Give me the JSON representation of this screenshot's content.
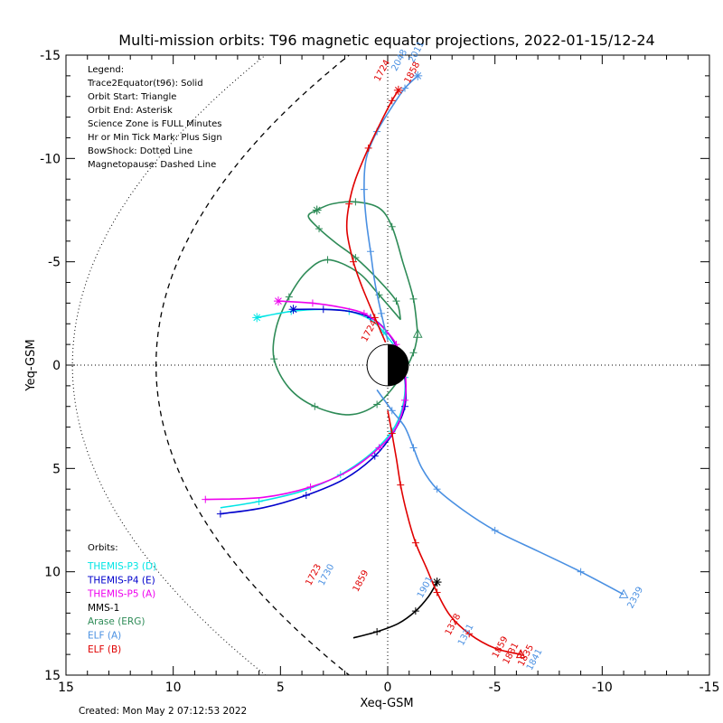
{
  "chart_data": {
    "type": "line",
    "title": "Multi-mission orbits: T96 magnetic equator projections, 2022-01-15/12-24",
    "xlabel": "Xeq-GSM",
    "ylabel": "Yeq-GSM",
    "xlim": [
      15,
      -15
    ],
    "ylim": [
      15,
      -15
    ],
    "xticks": [
      "15",
      "10",
      "5",
      "0",
      "-5",
      "-10",
      "-15"
    ],
    "yticks": [
      "-15",
      "-10",
      "-5",
      "0",
      "5",
      "10",
      "15"
    ],
    "grid": "dotted zero lines",
    "legend_lines": [
      "Legend:",
      "Trace2Equator(t96): Solid",
      "Orbit Start: Triangle",
      "Orbit End: Asterisk",
      "Science Zone is FULL Minutes",
      "Hr or Min Tick Mark: Plus Sign",
      "BowShock: Dotted Line",
      "Magnetopause: Dashed Line"
    ],
    "orbits_header": "Orbits:",
    "orbit_legend": [
      {
        "name": "THEMIS-P3 (D)",
        "color": "#00e5e5"
      },
      {
        "name": "THEMIS-P4 (E)",
        "color": "#0000cc"
      },
      {
        "name": "THEMIS-P5 (A)",
        "color": "#ee00ee"
      },
      {
        "name": "MMS-1",
        "color": "#000000"
      },
      {
        "name": "Arase (ERG)",
        "color": "#2e8b57"
      },
      {
        "name": "ELF (A)",
        "color": "#4a90e2"
      },
      {
        "name": "ELF (B)",
        "color": "#e00000"
      }
    ],
    "created": "Created: Mon May  2 07:12:53 2022",
    "series": [
      {
        "name": "Arase (ERG)",
        "color": "#2e8b57",
        "points": [
          [
            -1.4,
            -1.5
          ],
          [
            -1.2,
            -3.2
          ],
          [
            -0.7,
            -5
          ],
          [
            -0.2,
            -6.7
          ],
          [
            0.4,
            -7.6
          ],
          [
            1.5,
            -7.9
          ],
          [
            2.6,
            -7.8
          ],
          [
            3.3,
            -7.5
          ],
          [
            3.7,
            -7.2
          ],
          [
            3.2,
            -6.6
          ],
          [
            2.4,
            -5.9
          ],
          [
            1.5,
            -5.2
          ],
          [
            0.5,
            -4.2
          ],
          [
            -0.4,
            -3.1
          ],
          [
            -0.6,
            -2.2
          ]
        ],
        "points2": [
          [
            -1.4,
            -1.5
          ],
          [
            -1.2,
            -0.6
          ],
          [
            -0.6,
            0.6
          ],
          [
            0.5,
            1.9
          ],
          [
            1.8,
            2.4
          ],
          [
            3.4,
            2.0
          ],
          [
            4.6,
            1.1
          ],
          [
            5.3,
            -0.3
          ],
          [
            5.2,
            -1.8
          ],
          [
            4.6,
            -3.3
          ],
          [
            3.8,
            -4.5
          ],
          [
            2.8,
            -5.1
          ],
          [
            1.4,
            -4.5
          ],
          [
            0.4,
            -3.4
          ],
          [
            -0.6,
            -2.2
          ]
        ],
        "start": [
          -1.4,
          -1.5
        ],
        "end": [
          3.3,
          -7.5
        ]
      },
      {
        "name": "MMS-1",
        "color": "#000000",
        "points": [
          [
            1.6,
            13.2
          ],
          [
            0.5,
            12.9
          ],
          [
            -0.5,
            12.5
          ],
          [
            -1.3,
            11.9
          ],
          [
            -1.9,
            11.2
          ],
          [
            -2.3,
            10.5
          ]
        ],
        "end": [
          -2.3,
          10.5
        ]
      },
      {
        "name": "THEMIS-P3 (D)",
        "color": "#00e5e5",
        "points": [
          [
            6.1,
            -2.3
          ],
          [
            4.5,
            -2.6
          ],
          [
            3,
            -2.7
          ],
          [
            1.8,
            -2.6
          ],
          [
            0.8,
            -2.2
          ],
          [
            0.2,
            -1.6
          ],
          [
            -0.5,
            -0.6
          ],
          [
            -0.8,
            0.6
          ],
          [
            -0.7,
            2.0
          ],
          [
            -0.2,
            3.2
          ],
          [
            0.8,
            4.3
          ],
          [
            2.2,
            5.3
          ],
          [
            4,
            6.1
          ],
          [
            6,
            6.6
          ],
          [
            7.8,
            6.9
          ]
        ],
        "end": [
          6.1,
          -2.3
        ]
      },
      {
        "name": "THEMIS-P4 (E)",
        "color": "#0000cc",
        "points": [
          [
            4.4,
            -2.7
          ],
          [
            3,
            -2.7
          ],
          [
            1.8,
            -2.6
          ],
          [
            0.8,
            -2.3
          ],
          [
            0.1,
            -1.7
          ],
          [
            -0.5,
            -0.7
          ],
          [
            -0.8,
            0.6
          ],
          [
            -0.8,
            2.0
          ],
          [
            -0.3,
            3.2
          ],
          [
            0.6,
            4.4
          ],
          [
            2,
            5.5
          ],
          [
            3.8,
            6.3
          ],
          [
            5.8,
            6.9
          ],
          [
            7.8,
            7.2
          ]
        ],
        "end": [
          4.4,
          -2.7
        ]
      },
      {
        "name": "THEMIS-P5 (A)",
        "color": "#ee00ee",
        "points": [
          [
            5.1,
            -3.1
          ],
          [
            3.5,
            -3.0
          ],
          [
            2.2,
            -2.8
          ],
          [
            1.1,
            -2.5
          ],
          [
            0.3,
            -1.9
          ],
          [
            -0.4,
            -1.0
          ],
          [
            -0.8,
            0.3
          ],
          [
            -0.8,
            1.7
          ],
          [
            -0.4,
            3.0
          ],
          [
            0.4,
            4.0
          ],
          [
            1.8,
            5.1
          ],
          [
            3.6,
            5.9
          ],
          [
            5.8,
            6.4
          ],
          [
            8.5,
            6.5
          ]
        ],
        "end": [
          5.1,
          -3.1
        ]
      },
      {
        "name": "ELF (A)",
        "color": "#4a90e2",
        "points": [
          [
            -1.4,
            -14.0
          ],
          [
            -0.8,
            -13.4
          ],
          [
            -0.2,
            -12.5
          ],
          [
            0.5,
            -11.3
          ],
          [
            1.0,
            -10.0
          ],
          [
            1.1,
            -8.5
          ],
          [
            1.0,
            -7.0
          ],
          [
            0.8,
            -5.5
          ],
          [
            0.6,
            -4.0
          ],
          [
            0.3,
            -2.5
          ],
          [
            0.0,
            -1.2
          ]
        ],
        "points2": [
          [
            0.5,
            1.2
          ],
          [
            -0.2,
            2.2
          ],
          [
            -0.8,
            3.0
          ],
          [
            -1.2,
            4.0
          ],
          [
            -1.6,
            5.0
          ],
          [
            -2.3,
            6.0
          ],
          [
            -3.5,
            7.0
          ],
          [
            -5.0,
            8.0
          ],
          [
            -7.0,
            9.0
          ],
          [
            -9.0,
            10.0
          ],
          [
            -11.0,
            11.1
          ]
        ],
        "start": [
          -11.0,
          11.1
        ],
        "end": [
          -1.4,
          -14.0
        ]
      },
      {
        "name": "ELF (B)",
        "color": "#e00000",
        "points": [
          [
            -0.5,
            -13.3
          ],
          [
            -0.2,
            -12.8
          ],
          [
            0.3,
            -11.8
          ],
          [
            0.9,
            -10.5
          ],
          [
            1.5,
            -9.0
          ],
          [
            1.8,
            -7.8
          ],
          [
            1.9,
            -6.5
          ],
          [
            1.6,
            -5.0
          ],
          [
            1.2,
            -3.8
          ],
          [
            0.6,
            -2.3
          ],
          [
            0.1,
            -1.1
          ]
        ],
        "points2": [
          [
            0.0,
            2.2
          ],
          [
            -0.2,
            3.3
          ],
          [
            -0.4,
            4.5
          ],
          [
            -0.6,
            5.8
          ],
          [
            -0.9,
            7.2
          ],
          [
            -1.3,
            8.6
          ],
          [
            -1.8,
            9.8
          ],
          [
            -2.3,
            11.0
          ],
          [
            -2.9,
            12.1
          ],
          [
            -3.8,
            13.0
          ],
          [
            -5.0,
            13.7
          ],
          [
            -6.2,
            14.0
          ]
        ],
        "start": [
          -6.2,
          14.0
        ],
        "end": [
          -0.5,
          -13.3
        ]
      }
    ],
    "end_labels": [
      {
        "text": "2011",
        "color": "#4a90e2",
        "x": -1.2,
        "y": -14.6
      },
      {
        "text": "2048",
        "color": "#4a90e2",
        "x": -0.4,
        "y": -14.2
      },
      {
        "text": "1724",
        "color": "#e00000",
        "x": 0.4,
        "y": -13.7
      },
      {
        "text": "1858",
        "color": "#e00000",
        "x": -1.0,
        "y": -13.6
      },
      {
        "text": "1724",
        "color": "#e00000",
        "x": 1.0,
        "y": -1.1
      },
      {
        "text": "1730",
        "color": "#4a90e2",
        "x": 3.0,
        "y": 10.7
      },
      {
        "text": "1723",
        "color": "#e00000",
        "x": 3.6,
        "y": 10.7
      },
      {
        "text": "1859",
        "color": "#e00000",
        "x": 1.4,
        "y": 11.0
      },
      {
        "text": "1901",
        "color": "#4a90e2",
        "x": -1.6,
        "y": 11.3
      },
      {
        "text": "1328",
        "color": "#e00000",
        "x": -2.9,
        "y": 13.1
      },
      {
        "text": "1331",
        "color": "#4a90e2",
        "x": -3.5,
        "y": 13.6
      },
      {
        "text": "1859",
        "color": "#e00000",
        "x": -5.1,
        "y": 14.2
      },
      {
        "text": "1831",
        "color": "#e00000",
        "x": -5.6,
        "y": 14.5
      },
      {
        "text": "1835",
        "color": "#e00000",
        "x": -6.3,
        "y": 14.6
      },
      {
        "text": "1841",
        "color": "#4a90e2",
        "x": -6.7,
        "y": 14.8
      },
      {
        "text": "2339",
        "color": "#4a90e2",
        "x": -11.4,
        "y": 11.8
      }
    ]
  }
}
